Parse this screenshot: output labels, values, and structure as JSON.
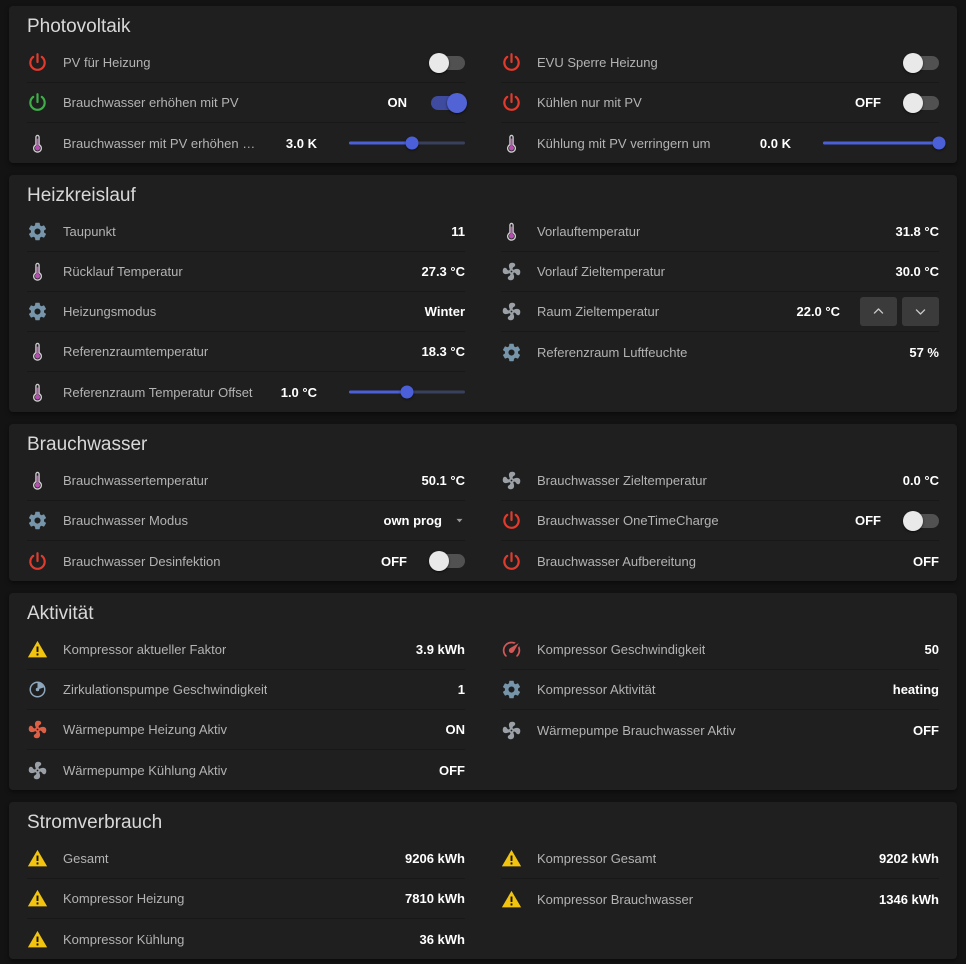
{
  "theme": {
    "red": "#e23b2e",
    "green": "#3fae49",
    "yellow": "#f2c40f",
    "gear": "#7695aa",
    "thermometer": "#b44fb0",
    "fan_on": "#dd5f45",
    "fan_off": "#9aa0a6",
    "gauge": "#d25757",
    "pump": "#8ea7bd",
    "accent_blue": "#4a5fd8"
  },
  "sections": [
    {
      "title": "Photovoltaik",
      "columns": {
        "left": [
          {
            "icon": "power-red",
            "label": "PV für Heizung",
            "control": {
              "type": "toggle",
              "state": "off"
            }
          },
          {
            "icon": "power-green",
            "label": "Brauchwasser erhöhen mit PV",
            "value": "ON",
            "control": {
              "type": "toggle",
              "state": "on"
            }
          },
          {
            "icon": "thermometer",
            "label": "Brauchwasser mit PV erhöhen um",
            "value": "3.0 K",
            "control": {
              "type": "slider",
              "percent": 54
            }
          }
        ],
        "right": [
          {
            "icon": "power-red",
            "label": "EVU Sperre Heizung",
            "control": {
              "type": "toggle",
              "state": "off"
            }
          },
          {
            "icon": "power-red",
            "label": "Kühlen nur mit PV",
            "value": "OFF",
            "control": {
              "type": "toggle",
              "state": "off"
            }
          },
          {
            "icon": "thermometer",
            "label": "Kühlung mit PV verringern um",
            "value": "0.0 K",
            "control": {
              "type": "slider",
              "percent": 100
            }
          }
        ]
      }
    },
    {
      "title": "Heizkreislauf",
      "columns": {
        "left": [
          {
            "icon": "gear",
            "label": "Taupunkt",
            "value": "11"
          },
          {
            "icon": "thermometer",
            "label": "Rücklauf Temperatur",
            "value": "27.3 °C"
          },
          {
            "icon": "gear",
            "label": "Heizungsmodus",
            "value": "Winter"
          },
          {
            "icon": "thermometer",
            "label": "Referenzraumtemperatur",
            "value": "18.3 °C"
          },
          {
            "icon": "thermometer",
            "label": "Referenzraum Temperatur Offset",
            "value": "1.0 °C",
            "control": {
              "type": "slider",
              "percent": 50
            }
          }
        ],
        "right": [
          {
            "icon": "thermometer",
            "label": "Vorlauftemperatur",
            "value": "31.8 °C"
          },
          {
            "icon": "fan-gray",
            "label": "Vorlauf Zieltemperatur",
            "value": "30.0 °C"
          },
          {
            "icon": "fan-gray",
            "label": "Raum Zieltemperatur",
            "value": "22.0 °C",
            "control": {
              "type": "stepper"
            }
          },
          {
            "icon": "gear",
            "label": "Referenzraum Luftfeuchte",
            "value": "57 %"
          }
        ]
      }
    },
    {
      "title": "Brauchwasser",
      "columns": {
        "left": [
          {
            "icon": "thermometer",
            "label": "Brauchwassertemperatur",
            "value": "50.1 °C"
          },
          {
            "icon": "gear",
            "label": "Brauchwasser Modus",
            "value": "own prog",
            "control": {
              "type": "select"
            }
          },
          {
            "icon": "power-red",
            "label": "Brauchwasser Desinfektion",
            "value": "OFF",
            "control": {
              "type": "toggle",
              "state": "off"
            }
          }
        ],
        "right": [
          {
            "icon": "fan-gray",
            "label": "Brauchwasser Zieltemperatur",
            "value": "0.0 °C"
          },
          {
            "icon": "power-red",
            "label": "Brauchwasser OneTimeCharge",
            "value": "OFF",
            "control": {
              "type": "toggle",
              "state": "off"
            }
          },
          {
            "icon": "power-red",
            "label": "Brauchwasser Aufbereitung",
            "value": "OFF"
          }
        ]
      }
    },
    {
      "title": "Aktivität",
      "columns": {
        "left": [
          {
            "icon": "warning",
            "label": "Kompressor aktueller Faktor",
            "value": "3.9 kWh"
          },
          {
            "icon": "pump",
            "label": "Zirkulationspumpe Geschwindigkeit",
            "value": "1"
          },
          {
            "icon": "fan-on",
            "label": "Wärmepumpe Heizung Aktiv",
            "value": "ON"
          },
          {
            "icon": "fan-gray",
            "label": "Wärmepumpe Kühlung Aktiv",
            "value": "OFF"
          }
        ],
        "right": [
          {
            "icon": "gauge",
            "label": "Kompressor Geschwindigkeit",
            "value": "50"
          },
          {
            "icon": "gear",
            "label": "Kompressor Aktivität",
            "value": "heating"
          },
          {
            "icon": "fan-gray",
            "label": "Wärmepumpe Brauchwasser Aktiv",
            "value": "OFF"
          }
        ]
      }
    },
    {
      "title": "Stromverbrauch",
      "columns": {
        "left": [
          {
            "icon": "warning",
            "label": "Gesamt",
            "value": "9206 kWh"
          },
          {
            "icon": "warning",
            "label": "Kompressor Heizung",
            "value": "7810 kWh"
          },
          {
            "icon": "warning",
            "label": "Kompressor Kühlung",
            "value": "36 kWh"
          }
        ],
        "right": [
          {
            "icon": "warning",
            "label": "Kompressor Gesamt",
            "value": "9202 kWh"
          },
          {
            "icon": "warning",
            "label": "Kompressor Brauchwasser",
            "value": "1346 kWh"
          }
        ]
      }
    }
  ]
}
